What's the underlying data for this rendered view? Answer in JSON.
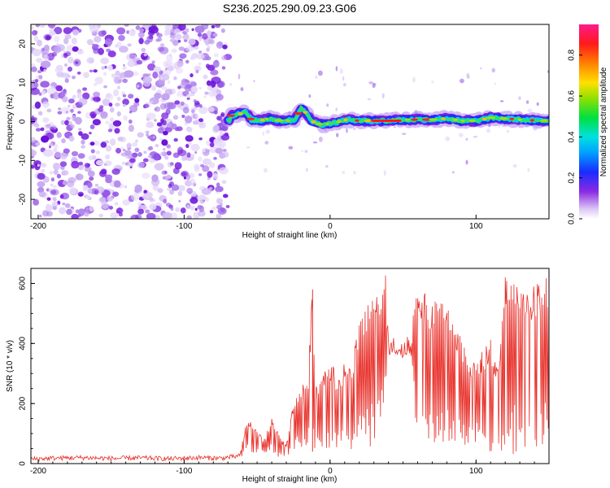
{
  "title": "S236.2025.290.09.23.G06",
  "colors": {
    "snr_line": "#e8302a",
    "spectrum_purple": "#7b1fe0",
    "spectrum_track": "#1a2cff"
  },
  "chart_data": [
    {
      "type": "heatmap",
      "xlabel": "Height of straight line (km)",
      "ylabel": "Frequency (Hz)",
      "xlim": [
        -205,
        150
      ],
      "ylim": [
        -25,
        25
      ],
      "xticks": [
        -200,
        -100,
        0,
        100
      ],
      "yticks": [
        20,
        10,
        0,
        -10,
        -20
      ],
      "grid": false,
      "noise_region_x": [
        -205,
        -70
      ],
      "signal_start_x": -70,
      "signal_track": [
        [
          -68,
          1.5
        ],
        [
          -62,
          2.0
        ],
        [
          -58,
          2.5
        ],
        [
          -54,
          0.5
        ],
        [
          -48,
          0.2
        ],
        [
          -42,
          0.8
        ],
        [
          -36,
          0.3
        ],
        [
          -30,
          0.2
        ],
        [
          -24,
          0.5
        ],
        [
          -20,
          3.5
        ],
        [
          -16,
          2.0
        ],
        [
          -12,
          0.0
        ],
        [
          -6,
          -0.8
        ],
        [
          0,
          -0.5
        ],
        [
          6,
          0.0
        ],
        [
          12,
          0.5
        ],
        [
          20,
          0.2
        ],
        [
          30,
          0.2
        ],
        [
          40,
          0.2
        ],
        [
          50,
          0.5
        ],
        [
          60,
          0.5
        ],
        [
          70,
          0.5
        ],
        [
          80,
          0.8
        ],
        [
          90,
          0.2
        ],
        [
          100,
          0.2
        ],
        [
          110,
          1.0
        ],
        [
          120,
          0.8
        ],
        [
          130,
          0.5
        ],
        [
          140,
          0.3
        ],
        [
          150,
          0.3
        ]
      ],
      "colorbar": {
        "label": "Normalized spectral amplitude",
        "range": [
          0,
          0.95
        ],
        "ticks": [
          0.0,
          0.2,
          0.4,
          0.6,
          0.8
        ]
      }
    },
    {
      "type": "line",
      "xlabel": "Height of straight line (km)",
      "ylabel": "SNR (10 * v/v)",
      "xlim": [
        -205,
        150
      ],
      "ylim": [
        0,
        650
      ],
      "xticks": [
        -200,
        -100,
        0,
        100
      ],
      "yticks": [
        0,
        200,
        400,
        600
      ],
      "grid": false,
      "series": [
        {
          "x": [
            -205,
            -190,
            -170,
            -150,
            -130,
            -110,
            -90,
            -75,
            -62,
            -58,
            -55,
            -50,
            -45,
            -40,
            -35,
            -30,
            -25,
            -20,
            -15,
            -12,
            -10,
            -5,
            0,
            5,
            10,
            15,
            18,
            20,
            25,
            30,
            35,
            38,
            40,
            45,
            50,
            55,
            60,
            65,
            70,
            75,
            80,
            85,
            90,
            95,
            100,
            105,
            110,
            115,
            120,
            125,
            130,
            135,
            140,
            145,
            150
          ],
          "y": [
            15,
            18,
            20,
            17,
            19,
            16,
            20,
            18,
            25,
            120,
            140,
            100,
            80,
            150,
            90,
            60,
            200,
            250,
            280,
            580,
            250,
            300,
            330,
            280,
            320,
            300,
            420,
            460,
            500,
            560,
            520,
            600,
            420,
            400,
            380,
            420,
            580,
            540,
            500,
            540,
            500,
            440,
            420,
            300,
            330,
            360,
            400,
            300,
            600,
            580,
            560,
            550,
            570,
            600,
            590
          ],
          "envelope_low": [
            5,
            5,
            5,
            5,
            5,
            5,
            5,
            5,
            10,
            40,
            40,
            30,
            30,
            40,
            20,
            20,
            40,
            40,
            30,
            40,
            40,
            30,
            40,
            40,
            40,
            40,
            40,
            40,
            40,
            60,
            120,
            180,
            360,
            360,
            360,
            360,
            60,
            60,
            60,
            60,
            60,
            60,
            60,
            60,
            60,
            40,
            40,
            40,
            40,
            30,
            40,
            40,
            50,
            50,
            50
          ]
        }
      ]
    }
  ]
}
